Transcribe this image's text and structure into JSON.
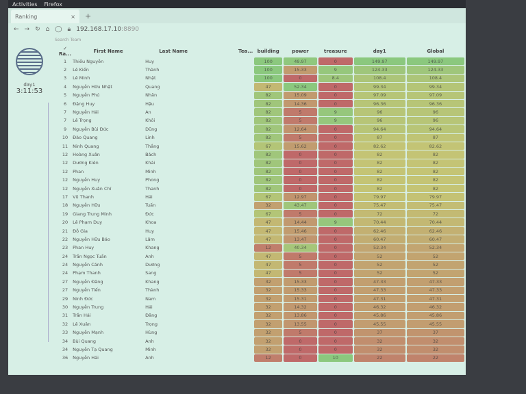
{
  "system": {
    "activities": "Activities",
    "browser": "Firefox"
  },
  "browser": {
    "tab_title": "Ranking",
    "tab_close": "×",
    "new_tab": "+",
    "url_host": "192.168.17.10",
    "url_port": ":8890"
  },
  "sidebar": {
    "day_label": "day1",
    "timer": "3:11:53"
  },
  "search": {
    "placeholder": "Search Team"
  },
  "table": {
    "headers": {
      "rank": "Ra...",
      "first_name": "First Name",
      "last_name": "Last Name",
      "team": "Tea...",
      "building": "building",
      "power": "power",
      "treasure": "treasure",
      "day1": "day1",
      "global": "Global"
    },
    "rows": [
      {
        "rank": "1",
        "first": "Thiều Nguyễn",
        "last": "Huy",
        "building": 100,
        "power": 49.97,
        "treasure": 0,
        "day1": 149.97,
        "global": 149.97
      },
      {
        "rank": "2",
        "first": "Lê Kiến",
        "last": "Thành",
        "building": 100,
        "power": 15.33,
        "treasure": 9,
        "day1": 124.33,
        "global": 124.33
      },
      {
        "rank": "3",
        "first": "Lê Minh",
        "last": "Nhật",
        "building": 100,
        "power": 0,
        "treasure": 8.4,
        "day1": 108.4,
        "global": 108.4
      },
      {
        "rank": "4",
        "first": "Nguyễn Hữu Nhật",
        "last": "Quang",
        "building": 47,
        "power": 52.34,
        "treasure": 0,
        "day1": 99.34,
        "global": 99.34
      },
      {
        "rank": "5",
        "first": "Nguyễn Phú",
        "last": "Nhân",
        "building": 82,
        "power": 15.09,
        "treasure": 0,
        "day1": 97.09,
        "global": 97.09
      },
      {
        "rank": "6",
        "first": "Đặng Huy",
        "last": "Hậu",
        "building": 82,
        "power": 14.36,
        "treasure": 0,
        "day1": 96.36,
        "global": 96.36
      },
      {
        "rank": "7",
        "first": "Nguyễn Hải",
        "last": "An",
        "building": 82,
        "power": 5,
        "treasure": 9,
        "day1": 96,
        "global": 96
      },
      {
        "rank": "7",
        "first": "Lê Trọng",
        "last": "Khôi",
        "building": 82,
        "power": 5,
        "treasure": 9,
        "day1": 96,
        "global": 96
      },
      {
        "rank": "9",
        "first": "Nguyễn Bùi Đức",
        "last": "Dũng",
        "building": 82,
        "power": 12.64,
        "treasure": 0,
        "day1": 94.64,
        "global": 94.64
      },
      {
        "rank": "10",
        "first": "Đào Quang",
        "last": "Linh",
        "building": 82,
        "power": 5,
        "treasure": 0,
        "day1": 87,
        "global": 87
      },
      {
        "rank": "11",
        "first": "Ninh Quang",
        "last": "Thắng",
        "building": 67,
        "power": 15.62,
        "treasure": 0,
        "day1": 82.62,
        "global": 82.62
      },
      {
        "rank": "12",
        "first": "Hoàng Xuân",
        "last": "Bách",
        "building": 82,
        "power": 0,
        "treasure": 0,
        "day1": 82,
        "global": 82
      },
      {
        "rank": "12",
        "first": "Dương Kiên",
        "last": "Khải",
        "building": 82,
        "power": 0,
        "treasure": 0,
        "day1": 82,
        "global": 82
      },
      {
        "rank": "12",
        "first": "Phan",
        "last": "Minh",
        "building": 82,
        "power": 0,
        "treasure": 0,
        "day1": 82,
        "global": 82
      },
      {
        "rank": "12",
        "first": "Nguyễn Huy",
        "last": "Phong",
        "building": 82,
        "power": 0,
        "treasure": 0,
        "day1": 82,
        "global": 82
      },
      {
        "rank": "12",
        "first": "Nguyễn Xuân Chí",
        "last": "Thanh",
        "building": 82,
        "power": 0,
        "treasure": 0,
        "day1": 82,
        "global": 82
      },
      {
        "rank": "17",
        "first": "Vũ Thanh",
        "last": "Hải",
        "building": 67,
        "power": 12.97,
        "treasure": 0,
        "day1": 79.97,
        "global": 79.97
      },
      {
        "rank": "18",
        "first": "Nguyễn Hữu",
        "last": "Tuấn",
        "building": 32,
        "power": 43.47,
        "treasure": 0,
        "day1": 75.47,
        "global": 75.47
      },
      {
        "rank": "19",
        "first": "Giang Trung Minh",
        "last": "Đức",
        "building": 67,
        "power": 5,
        "treasure": 0,
        "day1": 72,
        "global": 72
      },
      {
        "rank": "20",
        "first": "Lê Phạm Duy",
        "last": "Khoa",
        "building": 47,
        "power": 14.44,
        "treasure": 9,
        "day1": 70.44,
        "global": 70.44
      },
      {
        "rank": "21",
        "first": "Đỗ Gia",
        "last": "Huy",
        "building": 47,
        "power": 15.46,
        "treasure": 0,
        "day1": 62.46,
        "global": 62.46
      },
      {
        "rank": "22",
        "first": "Nguyễn Hữu Bảo",
        "last": "Lâm",
        "building": 47,
        "power": 13.47,
        "treasure": 0,
        "day1": 60.47,
        "global": 60.47
      },
      {
        "rank": "23",
        "first": "Phan Huy",
        "last": "Khang",
        "building": 12,
        "power": 40.34,
        "treasure": 0,
        "day1": 52.34,
        "global": 52.34
      },
      {
        "rank": "24",
        "first": "Trần Ngọc Tuấn",
        "last": "Anh",
        "building": 47,
        "power": 5,
        "treasure": 0,
        "day1": 52,
        "global": 52
      },
      {
        "rank": "24",
        "first": "Nguyễn Cảnh",
        "last": "Dương",
        "building": 47,
        "power": 5,
        "treasure": 0,
        "day1": 52,
        "global": 52
      },
      {
        "rank": "24",
        "first": "Phạm Thanh",
        "last": "Sang",
        "building": 47,
        "power": 5,
        "treasure": 0,
        "day1": 52,
        "global": 52
      },
      {
        "rank": "27",
        "first": "Nguyễn Đăng",
        "last": "Khang",
        "building": 32,
        "power": 15.33,
        "treasure": 0,
        "day1": 47.33,
        "global": 47.33
      },
      {
        "rank": "27",
        "first": "Nguyễn Tiến",
        "last": "Thành",
        "building": 32,
        "power": 15.33,
        "treasure": 0,
        "day1": 47.33,
        "global": 47.33
      },
      {
        "rank": "29",
        "first": "Ninh Đức",
        "last": "Nam",
        "building": 32,
        "power": 15.31,
        "treasure": 0,
        "day1": 47.31,
        "global": 47.31
      },
      {
        "rank": "30",
        "first": "Nguyễn Trung",
        "last": "Hải",
        "building": 32,
        "power": 14.32,
        "treasure": 0,
        "day1": 46.32,
        "global": 46.32
      },
      {
        "rank": "31",
        "first": "Trần Hải",
        "last": "Đăng",
        "building": 32,
        "power": 13.86,
        "treasure": 0,
        "day1": 45.86,
        "global": 45.86
      },
      {
        "rank": "32",
        "first": "Lê Xuân",
        "last": "Trọng",
        "building": 32,
        "power": 13.55,
        "treasure": 0,
        "day1": 45.55,
        "global": 45.55
      },
      {
        "rank": "33",
        "first": "Nguyễn Mạnh",
        "last": "Hùng",
        "building": 32,
        "power": 5,
        "treasure": 0,
        "day1": 37,
        "global": 37
      },
      {
        "rank": "34",
        "first": "Bùi Quang",
        "last": "Anh",
        "building": 32,
        "power": 0,
        "treasure": 0,
        "day1": 32,
        "global": 32
      },
      {
        "rank": "34",
        "first": "Nguyễn Tạ Quang",
        "last": "Minh",
        "building": 32,
        "power": 0,
        "treasure": 0,
        "day1": 32,
        "global": 32
      },
      {
        "rank": "36",
        "first": "Nguyễn Hải",
        "last": "Anh",
        "building": 12,
        "power": 0,
        "treasure": 10,
        "day1": 22,
        "global": 22
      }
    ]
  }
}
